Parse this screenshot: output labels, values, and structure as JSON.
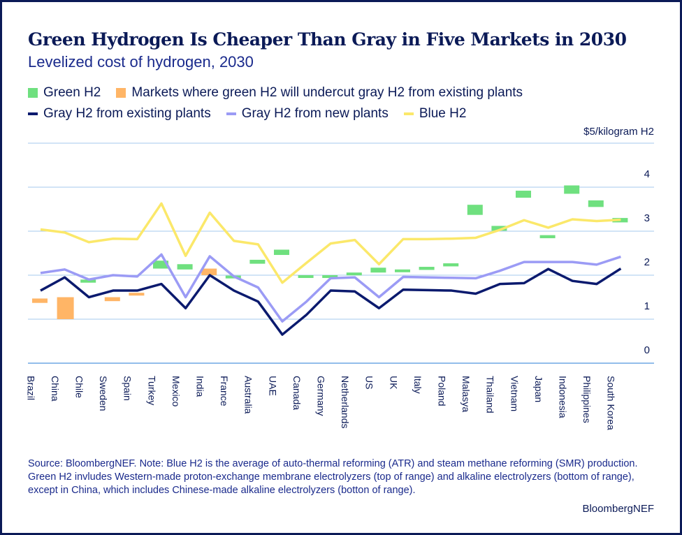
{
  "header": {
    "title": "Green Hydrogen Is Cheaper Than Gray in Five Markets in 2030",
    "subtitle": "Levelized cost of hydrogen, 2030"
  },
  "legend": {
    "green": "Green H2",
    "orange": "Markets where green H2 will undercut gray H2 from existing plants",
    "gray_existing": "Gray H2 from existing plants",
    "gray_new": "Gray H2 from new plants",
    "blue": "Blue H2"
  },
  "colors": {
    "green": "#6fe07f",
    "orange": "#ffb566",
    "gray_existing": "#0b1a6e",
    "gray_new": "#9b9bf5",
    "blue": "#fbe86a",
    "grid": "#a6c9ee",
    "text": "#0b1a57"
  },
  "chart_data": {
    "type": "line",
    "ylabel": "$5/kilogram H2",
    "ylim": [
      0,
      5
    ],
    "yticks": [
      "0",
      "1",
      "2",
      "3",
      "4"
    ],
    "categories": [
      "Brazil",
      "China",
      "Chile",
      "Sweden",
      "Spain",
      "Turkey",
      "Mexico",
      "India",
      "France",
      "Australia",
      "UAE",
      "Canada",
      "Germany",
      "Netherlands",
      "US",
      "UK",
      "Italy",
      "Poland",
      "Malasya",
      "Thailand",
      "Vietnam",
      "Japan",
      "Indonesia",
      "Philippines",
      "South Korea"
    ],
    "series": [
      {
        "name": "Gray H2 from existing plants",
        "key": "gray_existing",
        "values": [
          1.65,
          1.95,
          1.5,
          1.65,
          1.65,
          1.8,
          1.25,
          2.0,
          1.65,
          1.4,
          0.65,
          1.1,
          1.65,
          1.63,
          1.25,
          1.67,
          1.66,
          1.65,
          1.58,
          1.8,
          1.82,
          2.14,
          1.87,
          1.8,
          2.15
        ]
      },
      {
        "name": "Gray H2 from new plants",
        "key": "gray_new",
        "values": [
          2.05,
          2.13,
          1.9,
          2.0,
          1.97,
          2.47,
          1.5,
          2.43,
          1.97,
          1.72,
          0.95,
          1.4,
          1.93,
          1.95,
          1.5,
          1.96,
          1.95,
          1.94,
          1.93,
          2.1,
          2.3,
          2.3,
          2.3,
          2.24,
          2.42
        ]
      },
      {
        "name": "Blue H2",
        "key": "blue",
        "values": [
          3.04,
          2.97,
          2.75,
          2.83,
          2.82,
          3.63,
          2.44,
          3.42,
          2.78,
          2.7,
          1.83,
          2.28,
          2.72,
          2.8,
          2.25,
          2.82,
          2.82,
          2.83,
          2.85,
          3.03,
          3.25,
          3.08,
          3.27,
          3.23,
          3.26
        ]
      }
    ],
    "green_ranges": [
      {
        "category": "Chile",
        "low": 1.83,
        "high": 1.9
      },
      {
        "category": "Turkey",
        "low": 2.15,
        "high": 2.33
      },
      {
        "category": "Mexico",
        "low": 2.13,
        "high": 2.25
      },
      {
        "category": "France",
        "low": 1.93,
        "high": 1.99
      },
      {
        "category": "Australia",
        "low": 2.26,
        "high": 2.35
      },
      {
        "category": "UAE",
        "low": 2.46,
        "high": 2.58
      },
      {
        "category": "Canada",
        "low": 1.95,
        "high": 2.0
      },
      {
        "category": "Germany",
        "low": 1.95,
        "high": 2.0
      },
      {
        "category": "Netherlands",
        "low": 2.0,
        "high": 2.06
      },
      {
        "category": "US",
        "low": 2.06,
        "high": 2.17
      },
      {
        "category": "UK",
        "low": 2.07,
        "high": 2.13
      },
      {
        "category": "Italy",
        "low": 2.12,
        "high": 2.19
      },
      {
        "category": "Poland",
        "low": 2.2,
        "high": 2.27
      },
      {
        "category": "Malasya",
        "low": 3.37,
        "high": 3.6
      },
      {
        "category": "Thailand",
        "low": 3.01,
        "high": 3.12
      },
      {
        "category": "Vietnam",
        "low": 3.76,
        "high": 3.92
      },
      {
        "category": "Japan",
        "low": 2.84,
        "high": 2.91
      },
      {
        "category": "Indonesia",
        "low": 3.85,
        "high": 4.04
      },
      {
        "category": "Philippines",
        "low": 3.55,
        "high": 3.7
      },
      {
        "category": "South Korea",
        "low": 3.2,
        "high": 3.3
      }
    ],
    "orange_ranges": [
      {
        "category": "Brazil",
        "low": 1.37,
        "high": 1.47
      },
      {
        "category": "China",
        "low": 1.0,
        "high": 1.5
      },
      {
        "category": "Sweden",
        "low": 1.41,
        "high": 1.5
      },
      {
        "category": "Spain",
        "low": 1.54,
        "high": 1.6
      },
      {
        "category": "India",
        "low": 2.0,
        "high": 2.15
      }
    ]
  },
  "footer": {
    "source": "Source: BloombergNEF. Note: Blue H2 is the average of auto-thermal reforming (ATR) and steam methane reforming (SMR) production. Green H2 invludes Western-made proton-exchange membrane electrolyzers (top of range) and alkaline electrolyzers (bottom of range), except in China, which includes Chinese-made alkaline electrolyzers (botton of range).",
    "brand": "BloombergNEF"
  }
}
